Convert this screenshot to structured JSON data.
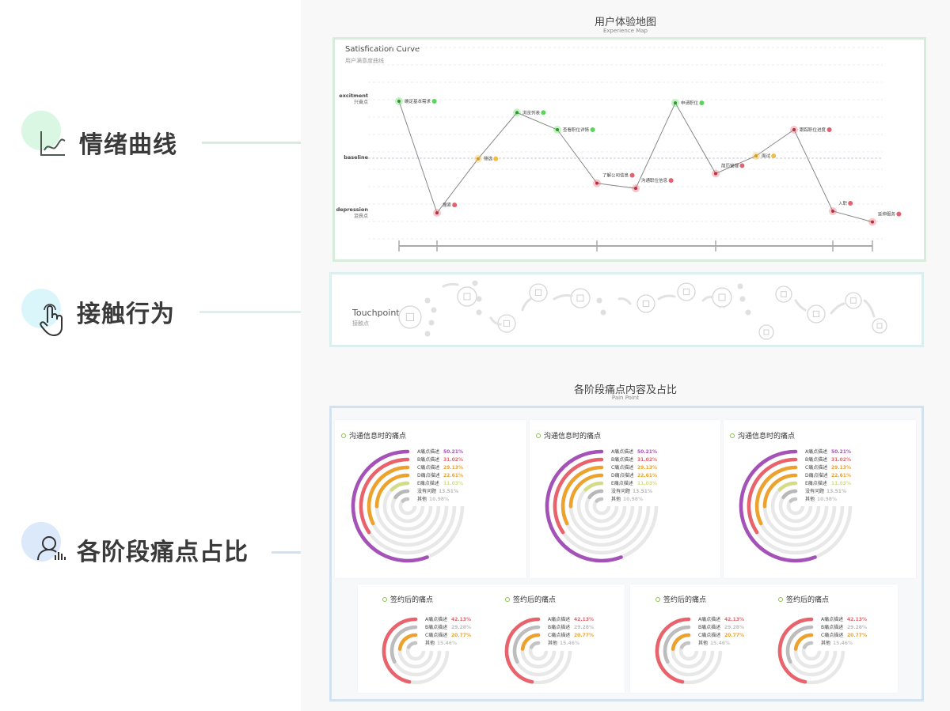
{
  "left_nav": [
    {
      "label": "情绪曲线",
      "icon": "line-chart-icon",
      "color": "#d9f7e3"
    },
    {
      "label": "接触行为",
      "icon": "hand-pointer-icon",
      "color": "#daf6fb"
    },
    {
      "label": "各阶段痛点占比",
      "icon": "user-chart-icon",
      "color": "#dbe9fb"
    }
  ],
  "experience_map": {
    "title": "用户体验地图",
    "subtitle": "Experience Map"
  },
  "satisfaction": {
    "title": "Satisfication Curve",
    "subtitle": "用户满意度曲线"
  },
  "touchpoint": {
    "title": "Touchpoint",
    "subtitle": "接触点"
  },
  "pain_point": {
    "title": "各阶段痛点内容及占比",
    "subtitle": "Pain Point"
  },
  "colors": {
    "positive": "#5cd35c",
    "neutral": "#f1bd43",
    "negative": "#e4626f"
  },
  "chart_data": [
    {
      "type": "line",
      "title": "Satisfication Curve",
      "subtitle": "用户满意度曲线",
      "y_levels": [
        {
          "label": "excitment",
          "sub": "兴奋点",
          "value": 1
        },
        {
          "label": "baseline",
          "sub": "",
          "value": 0
        },
        {
          "label": "depression",
          "sub": "沮丧点",
          "value": -1
        }
      ],
      "ylim": [
        -1.3,
        1.3
      ],
      "points": [
        {
          "label": "确定基本需求",
          "value": 1.0,
          "mood": "positive"
        },
        {
          "label": "搜索",
          "value": -0.96,
          "mood": "negative"
        },
        {
          "label": "筛选",
          "value": -0.01,
          "mood": "neutral"
        },
        {
          "label": "浏览列表",
          "value": 0.8,
          "mood": "positive"
        },
        {
          "label": "查看职位详情",
          "value": 0.5,
          "mood": "positive"
        },
        {
          "label": "了解公司信息",
          "value": -0.44,
          "mood": "negative"
        },
        {
          "label": "沟通职位信息",
          "value": -0.53,
          "mood": "negative"
        },
        {
          "label": "申请职位",
          "value": 0.97,
          "mood": "positive"
        },
        {
          "label": "简历管理",
          "value": -0.27,
          "mood": "negative"
        },
        {
          "label": "面试",
          "value": 0.04,
          "mood": "neutral"
        },
        {
          "label": "跟踪职位进度",
          "value": 0.5,
          "mood": "negative"
        },
        {
          "label": "入职",
          "value": -0.93,
          "mood": "negative"
        },
        {
          "label": "延伸服务",
          "value": -1.12,
          "mood": "negative"
        }
      ],
      "stage_ticks": [
        0,
        1,
        5,
        8,
        11,
        12
      ]
    },
    {
      "type": "radial-bar",
      "title": "沟通信息时的痛点",
      "series": [
        {
          "label": "A痛点描述",
          "value": 50.21,
          "color": "#a552b8"
        },
        {
          "label": "B痛点描述",
          "value": 31.02,
          "color": "#e8636b"
        },
        {
          "label": "C痛点描述",
          "value": 29.13,
          "color": "#eca22c"
        },
        {
          "label": "D痛点描述",
          "value": 22.61,
          "color": "#eca22c"
        },
        {
          "label": "E痛点描述",
          "value": 11.03,
          "color": "#d3dc86"
        },
        {
          "label": "没有问题",
          "value": 13.51,
          "color": "#b8b8b8"
        },
        {
          "label": "其他",
          "value": 10.98,
          "color": "#c4c4c4"
        }
      ]
    },
    {
      "type": "radial-bar",
      "title": "沟通信息时的痛点",
      "series": [
        {
          "label": "A痛点描述",
          "value": 50.21,
          "color": "#a552b8"
        },
        {
          "label": "B痛点描述",
          "value": 31.02,
          "color": "#e8636b"
        },
        {
          "label": "C痛点描述",
          "value": 29.13,
          "color": "#eca22c"
        },
        {
          "label": "D痛点描述",
          "value": 22.61,
          "color": "#eca22c"
        },
        {
          "label": "E痛点描述",
          "value": 11.03,
          "color": "#d3dc86"
        },
        {
          "label": "没有问题",
          "value": 13.51,
          "color": "#b8b8b8"
        },
        {
          "label": "其他",
          "value": 10.98,
          "color": "#c4c4c4"
        }
      ]
    },
    {
      "type": "radial-bar",
      "title": "沟通信息时的痛点",
      "series": [
        {
          "label": "A痛点描述",
          "value": 50.21,
          "color": "#a552b8"
        },
        {
          "label": "B痛点描述",
          "value": 31.02,
          "color": "#e8636b"
        },
        {
          "label": "C痛点描述",
          "value": 29.13,
          "color": "#eca22c"
        },
        {
          "label": "D痛点描述",
          "value": 22.61,
          "color": "#eca22c"
        },
        {
          "label": "E痛点描述",
          "value": 11.03,
          "color": "#d3dc86"
        },
        {
          "label": "没有问题",
          "value": 13.51,
          "color": "#b8b8b8"
        },
        {
          "label": "其他",
          "value": 10.98,
          "color": "#c4c4c4"
        }
      ]
    },
    {
      "type": "radial-bar",
      "title": "签约后的痛点",
      "series": [
        {
          "label": "A痛点描述",
          "value": 42.13,
          "color": "#e8636b"
        },
        {
          "label": "B痛点描述",
          "value": 29.28,
          "color": "#bdbdbd"
        },
        {
          "label": "C痛点描述",
          "value": 20.77,
          "color": "#eca22c"
        },
        {
          "label": "其他",
          "value": 15.46,
          "color": "#c4c4c4"
        }
      ]
    },
    {
      "type": "radial-bar",
      "title": "签约后的痛点",
      "series": [
        {
          "label": "A痛点描述",
          "value": 42.13,
          "color": "#e8636b"
        },
        {
          "label": "B痛点描述",
          "value": 29.28,
          "color": "#bdbdbd"
        },
        {
          "label": "C痛点描述",
          "value": 20.77,
          "color": "#eca22c"
        },
        {
          "label": "其他",
          "value": 15.46,
          "color": "#c4c4c4"
        }
      ]
    },
    {
      "type": "radial-bar",
      "title": "签约后的痛点",
      "series": [
        {
          "label": "A痛点描述",
          "value": 42.13,
          "color": "#e8636b"
        },
        {
          "label": "B痛点描述",
          "value": 29.28,
          "color": "#bdbdbd"
        },
        {
          "label": "C痛点描述",
          "value": 20.77,
          "color": "#eca22c"
        },
        {
          "label": "其他",
          "value": 15.46,
          "color": "#c4c4c4"
        }
      ]
    },
    {
      "type": "radial-bar",
      "title": "签约后的痛点",
      "series": [
        {
          "label": "A痛点描述",
          "value": 42.13,
          "color": "#e8636b"
        },
        {
          "label": "B痛点描述",
          "value": 29.28,
          "color": "#bdbdbd"
        },
        {
          "label": "C痛点描述",
          "value": 20.77,
          "color": "#eca22c"
        },
        {
          "label": "其他",
          "value": 15.46,
          "color": "#c4c4c4"
        }
      ]
    }
  ]
}
